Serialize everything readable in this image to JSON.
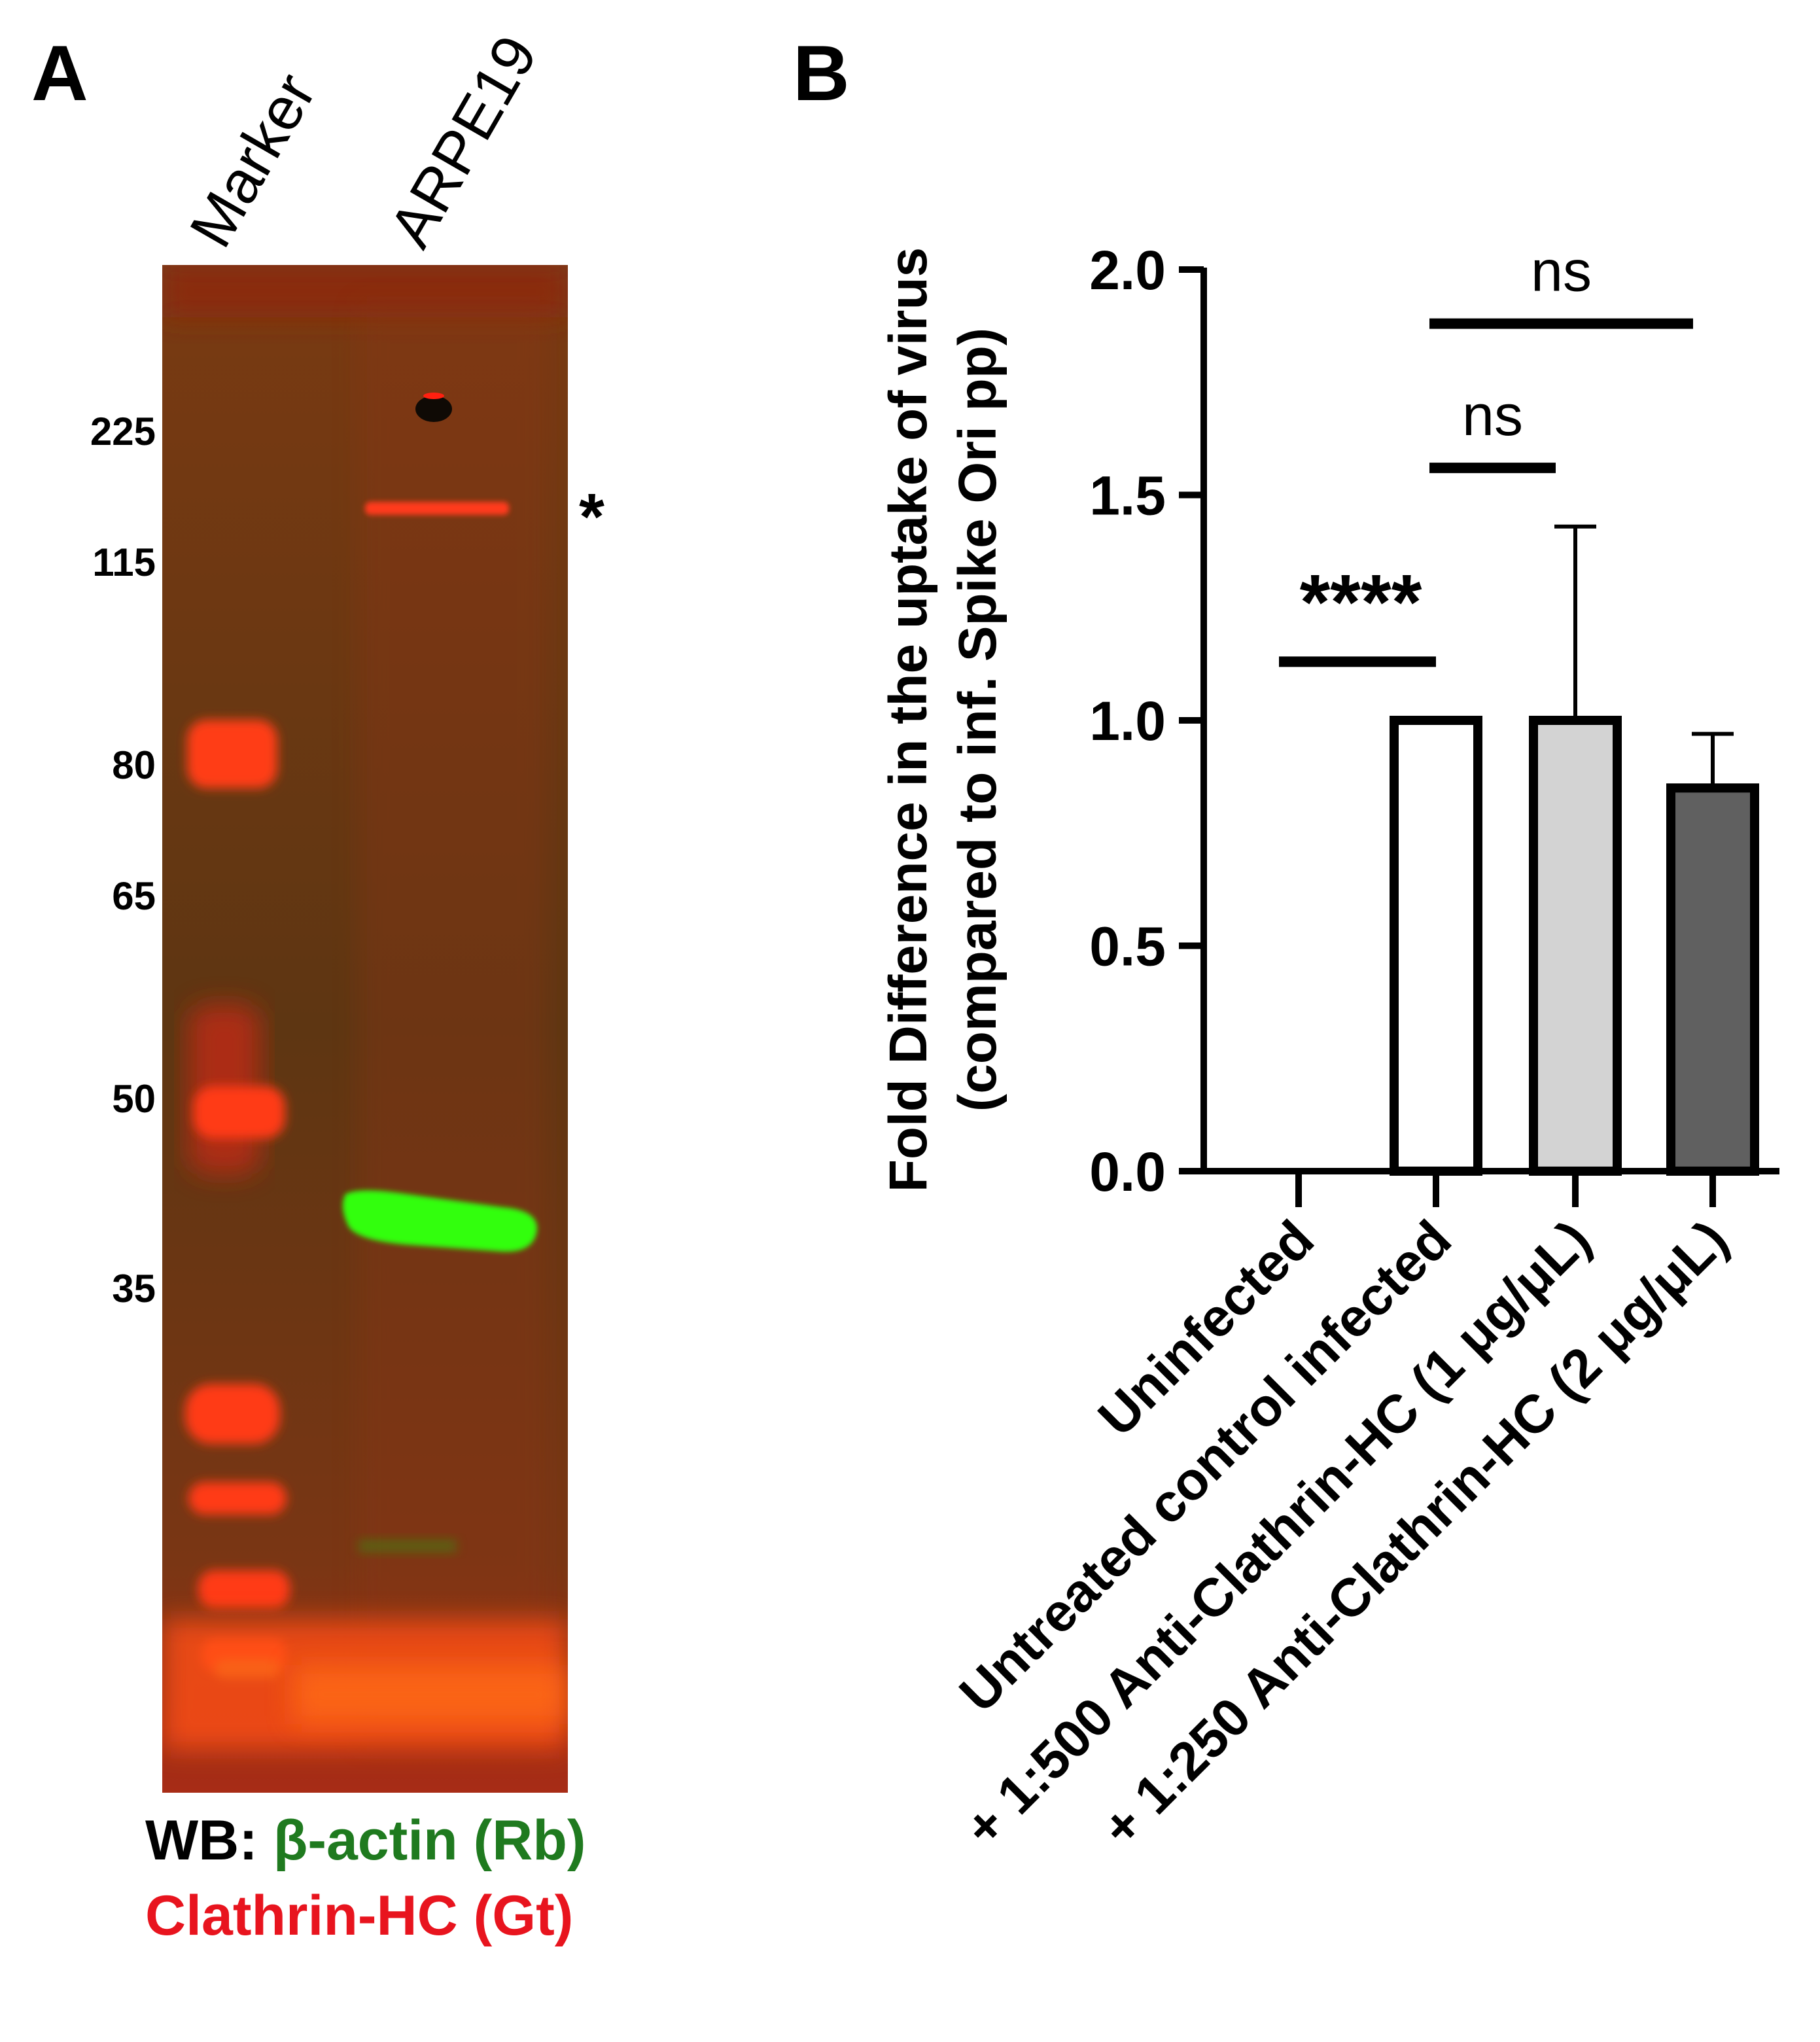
{
  "panel_a": {
    "letter": "A",
    "lane_labels": [
      "Marker",
      "ARPE19"
    ],
    "mw_markers": [
      "225",
      "115",
      "80",
      "65",
      "50",
      "35"
    ],
    "asterisk": "*",
    "wb_prefix": "WB:",
    "wb_antibody_1": "β-actin (Rb)",
    "wb_antibody_2": "Clathrin-HC (Gt)",
    "colors": {
      "antibody_1": "#1f7a1f",
      "antibody_2": "#e8141e",
      "blot_background": "#6b3a12",
      "clathrin_band": "#ff3a1a",
      "actin_band": "#33ff10"
    }
  },
  "panel_b": {
    "letter": "B"
  },
  "chart_data": {
    "type": "bar",
    "ylabel_line1": "Fold Difference in the uptake of virus",
    "ylabel_line2": "(compared to inf. Spike Ori pp)",
    "ylim": [
      0,
      2.0
    ],
    "yticks": [
      "0.0",
      "0.5",
      "1.0",
      "1.5",
      "2.0"
    ],
    "categories": [
      "Uninfected",
      "Untreated control infected",
      "+ 1:500 Anti-Clathrin-HC (1 μg/μL)",
      "+ 1:250 Anti-Clathrin-HC (2 μg/μL)"
    ],
    "values": [
      0,
      1.0,
      1.0,
      0.85
    ],
    "error_upper": [
      0,
      0,
      1.43,
      0.97
    ],
    "bar_fills": [
      "#ffffff",
      "#ffffff",
      "#d3d3d3",
      "#606060"
    ],
    "significance": [
      {
        "label": "****",
        "from": 0,
        "to": 1,
        "y": 1.13
      },
      {
        "label": "ns",
        "from": 1,
        "to": 2,
        "y": 1.56
      },
      {
        "label": "ns",
        "from": 1,
        "to": 3,
        "y": 1.88
      }
    ]
  }
}
